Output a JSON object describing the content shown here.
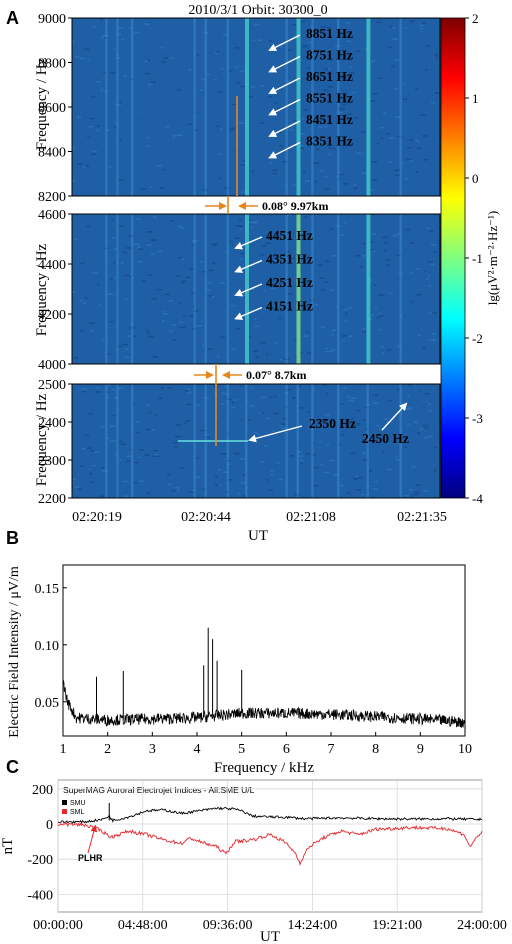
{
  "panel_labels": {
    "a": "A",
    "b": "B",
    "c": "C"
  },
  "panel_a": {
    "title": "2010/3/1    Orbit: 30300_0",
    "ylabel": "Frequency / Hz",
    "xlabel": "UT",
    "x_ticks": [
      "02:20:19",
      "02:20:44",
      "02:21:08",
      "02:21:35"
    ],
    "subplots": [
      {
        "ylim": [
          8200,
          9000
        ],
        "y_ticks": [
          "9000",
          "8800",
          "8600",
          "8400",
          "8200"
        ],
        "annotations": [
          "8851 Hz",
          "8751 Hz",
          "8651 Hz",
          "8551 Hz",
          "8451 Hz",
          "8351 Hz"
        ]
      },
      {
        "ylim": [
          4000,
          4600
        ],
        "y_ticks": [
          "4600",
          "4400",
          "4200",
          "4000"
        ],
        "annotations": [
          "4451 Hz",
          "4351 Hz",
          "4251 Hz",
          "4151 Hz"
        ]
      },
      {
        "ylim": [
          2200,
          2500
        ],
        "y_ticks": [
          "2500",
          "2400",
          "2300",
          "2200"
        ],
        "annotations": [
          "2350 Hz",
          "2450 Hz"
        ]
      }
    ],
    "width_labels": [
      "0.08° 9.97km",
      "0.07° 8.7km"
    ],
    "colorbar": {
      "label": "lg(μV²·m⁻²·Hz⁻¹)",
      "ticks": [
        "2",
        "1",
        "0",
        "-1",
        "-2",
        "-3",
        "-4"
      ],
      "range": [
        -4,
        2
      ]
    },
    "colors": {
      "marker": "#e8861e",
      "annotation_text": "#ffffff"
    }
  },
  "chart_data": [
    {
      "type": "heatmap",
      "panel": "A",
      "title": "2010/3/1    Orbit: 30300_0",
      "xlabel": "UT",
      "ylabel": "Frequency / Hz",
      "x_range": [
        "02:20:19",
        "02:21:35"
      ],
      "lines_hz": [
        8851,
        8751,
        8651,
        8551,
        8451,
        8351,
        4451,
        4351,
        4251,
        4151,
        2350,
        2450
      ],
      "colorbar_range": [
        -4,
        2
      ]
    },
    {
      "type": "line",
      "panel": "B",
      "xlabel": "Frequency / kHz",
      "ylabel": "Electric Field Intensity / μV/m",
      "xlim": [
        1,
        10
      ],
      "ylim": [
        0.02,
        0.17
      ],
      "x_ticks": [
        "1",
        "2",
        "3",
        "4",
        "5",
        "6",
        "7",
        "8",
        "9",
        "10"
      ],
      "y_ticks": [
        "0.05",
        "0.10",
        "0.15"
      ],
      "baseline": [
        [
          1.0,
          0.068
        ],
        [
          1.1,
          0.05
        ],
        [
          1.3,
          0.036
        ],
        [
          2,
          0.034
        ],
        [
          3,
          0.035
        ],
        [
          4,
          0.036
        ],
        [
          5,
          0.04
        ],
        [
          6,
          0.04
        ],
        [
          7,
          0.039
        ],
        [
          8,
          0.037
        ],
        [
          9,
          0.035
        ],
        [
          10,
          0.032
        ]
      ],
      "peaks": [
        [
          1.75,
          0.072
        ],
        [
          2.35,
          0.077
        ],
        [
          4.15,
          0.082
        ],
        [
          4.25,
          0.115
        ],
        [
          4.35,
          0.105
        ],
        [
          4.45,
          0.086
        ],
        [
          5.0,
          0.078
        ]
      ]
    },
    {
      "type": "line",
      "panel": "C",
      "title": "SuperMAG Auroral Electrojet Indices - All:SME U/L",
      "xlabel": "UT",
      "ylabel": "nT",
      "xlim": [
        0,
        24
      ],
      "ylim": [
        -500,
        250
      ],
      "x_ticks": [
        "00:00:00",
        "04:48:00",
        "09:36:00",
        "14:24:00",
        "19:21:00",
        "24:00:00"
      ],
      "y_ticks": [
        "200",
        "0",
        "-200",
        "-400"
      ],
      "annotation": "PLHR",
      "series": [
        {
          "name": "SMU",
          "color": "#000000",
          "points": [
            [
              0,
              12
            ],
            [
              1.5,
              12
            ],
            [
              2.5,
              25
            ],
            [
              2.9,
              45
            ],
            [
              3.1,
              20
            ],
            [
              4,
              40
            ],
            [
              5,
              75
            ],
            [
              6,
              80
            ],
            [
              7,
              60
            ],
            [
              8,
              75
            ],
            [
              9,
              90
            ],
            [
              10,
              85
            ],
            [
              10.5,
              70
            ],
            [
              11,
              45
            ],
            [
              12,
              40
            ],
            [
              13,
              38
            ],
            [
              14,
              30
            ],
            [
              16,
              35
            ],
            [
              18,
              30
            ],
            [
              20,
              28
            ],
            [
              22,
              30
            ],
            [
              24,
              25
            ]
          ]
        },
        {
          "name": "SML",
          "color": "#e8272c",
          "points": [
            [
              0,
              0
            ],
            [
              1.5,
              -5
            ],
            [
              2,
              -20
            ],
            [
              2.5,
              -40
            ],
            [
              3,
              -75
            ],
            [
              4,
              -40
            ],
            [
              5,
              -60
            ],
            [
              6,
              -90
            ],
            [
              7,
              -110
            ],
            [
              7.5,
              -80
            ],
            [
              8,
              -100
            ],
            [
              9,
              -130
            ],
            [
              9.5,
              -170
            ],
            [
              10,
              -100
            ],
            [
              11,
              -90
            ],
            [
              12,
              -60
            ],
            [
              12.8,
              -100
            ],
            [
              13.4,
              -160
            ],
            [
              13.7,
              -220
            ],
            [
              14.2,
              -130
            ],
            [
              15,
              -80
            ],
            [
              16,
              -40
            ],
            [
              17,
              -60
            ],
            [
              18,
              -30
            ],
            [
              20,
              -20
            ],
            [
              22,
              -25
            ],
            [
              23,
              -60
            ],
            [
              23.3,
              -130
            ],
            [
              23.6,
              -90
            ],
            [
              24,
              -40
            ]
          ]
        }
      ]
    }
  ]
}
